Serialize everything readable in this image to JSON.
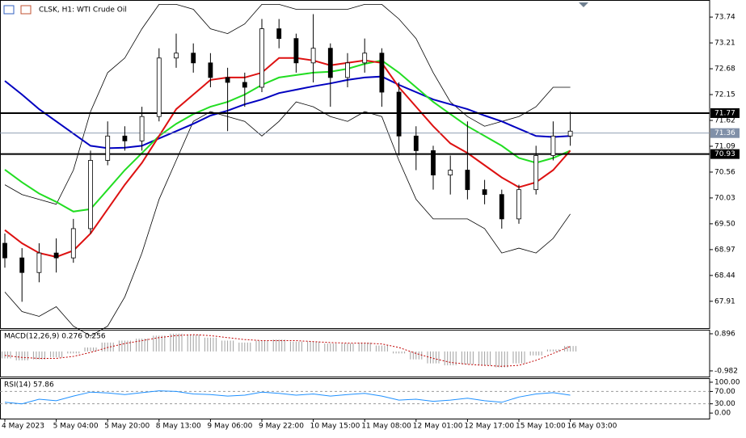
{
  "chart_data": [
    {
      "type": "candlestick",
      "title": "CLSK, H1:  WTI Crude Oil",
      "categories": [
        "4 May 2023",
        null,
        null,
        "5 May 04:00",
        null,
        null,
        "5 May 20:00",
        null,
        null,
        "8 May 13:00",
        null,
        null,
        "9 May 06:00",
        null,
        null,
        "9 May 22:00",
        null,
        null,
        "10 May 15:00",
        null,
        null,
        "11 May 08:00",
        null,
        null,
        "12 May 01:00",
        null,
        null,
        "12 May 17:00",
        null,
        null,
        "15 May 10:00",
        null,
        null,
        "16 May 03:00"
      ],
      "ohlc": [
        [
          69.1,
          69.3,
          68.6,
          68.8
        ],
        [
          68.8,
          69.0,
          67.9,
          68.5
        ],
        [
          68.5,
          69.1,
          68.3,
          68.9
        ],
        [
          68.9,
          69.2,
          68.5,
          68.8
        ],
        [
          68.8,
          69.6,
          68.7,
          69.4
        ],
        [
          69.4,
          71.0,
          69.3,
          70.8
        ],
        [
          70.8,
          71.6,
          70.7,
          71.3
        ],
        [
          71.3,
          71.5,
          71.0,
          71.2
        ],
        [
          71.2,
          71.9,
          71.0,
          71.7
        ],
        [
          71.7,
          73.1,
          71.6,
          72.9
        ],
        [
          72.9,
          73.4,
          72.7,
          73.0
        ],
        [
          73.0,
          73.2,
          72.6,
          72.8
        ],
        [
          72.8,
          73.0,
          72.3,
          72.5
        ],
        [
          72.5,
          72.7,
          71.4,
          72.4
        ],
        [
          72.4,
          72.6,
          71.9,
          72.3
        ],
        [
          72.3,
          73.7,
          72.2,
          73.5
        ],
        [
          73.5,
          73.7,
          73.1,
          73.3
        ],
        [
          73.3,
          73.4,
          72.6,
          72.8
        ],
        [
          72.8,
          73.8,
          72.4,
          73.1
        ],
        [
          73.1,
          73.2,
          71.9,
          72.5
        ],
        [
          72.5,
          73.0,
          72.3,
          72.8
        ],
        [
          72.8,
          73.3,
          72.6,
          73.0
        ],
        [
          73.0,
          73.1,
          71.9,
          72.2
        ],
        [
          72.2,
          72.4,
          70.9,
          71.3
        ],
        [
          71.3,
          71.5,
          70.6,
          71.0
        ],
        [
          71.0,
          71.1,
          70.2,
          70.5
        ],
        [
          70.5,
          70.9,
          70.1,
          70.6
        ],
        [
          70.6,
          71.6,
          70.0,
          70.2
        ],
        [
          70.2,
          70.4,
          69.9,
          70.1
        ],
        [
          70.1,
          70.2,
          69.4,
          69.6
        ],
        [
          69.6,
          70.3,
          69.5,
          70.2
        ],
        [
          70.2,
          71.1,
          70.1,
          70.9
        ],
        [
          70.9,
          71.6,
          70.8,
          71.3
        ],
        [
          71.3,
          71.8,
          71.1,
          71.4
        ]
      ],
      "overlays": [
        {
          "color": "#000000",
          "values": [
            70.3,
            70.1,
            70.0,
            69.9,
            70.6,
            71.8,
            72.6,
            72.9,
            73.5,
            74.0,
            74.0,
            73.9,
            73.5,
            73.4,
            73.6,
            74.0,
            74.0,
            73.9,
            73.9,
            73.9,
            73.9,
            74.0,
            74.0,
            73.7,
            73.3,
            72.6,
            72.0,
            71.7,
            71.5,
            71.6,
            71.7,
            71.9,
            72.3,
            72.3
          ]
        },
        {
          "color": "#000000",
          "values": [
            68.1,
            67.7,
            67.6,
            67.8,
            67.4,
            67.2,
            67.4,
            68.0,
            68.9,
            70.0,
            70.8,
            71.6,
            71.8,
            71.7,
            71.6,
            71.3,
            71.6,
            72.0,
            71.9,
            71.7,
            71.6,
            71.8,
            71.7,
            70.8,
            70.0,
            69.6,
            69.6,
            69.6,
            69.4,
            68.9,
            69.0,
            68.9,
            69.2,
            69.7
          ]
        },
        {
          "color": "#0000c0",
          "values": [
            72.43,
            72.15,
            71.85,
            71.6,
            71.35,
            71.1,
            71.05,
            71.06,
            71.1,
            71.25,
            71.4,
            71.55,
            71.72,
            71.82,
            71.95,
            72.05,
            72.18,
            72.25,
            72.32,
            72.38,
            72.45,
            72.5,
            72.52,
            72.35,
            72.2,
            72.05,
            71.95,
            71.85,
            71.72,
            71.6,
            71.45,
            71.3,
            71.28,
            71.3
          ]
        },
        {
          "color": "#22dd22",
          "values": [
            70.61,
            70.35,
            70.12,
            69.95,
            69.75,
            69.8,
            70.2,
            70.6,
            70.95,
            71.3,
            71.55,
            71.75,
            71.9,
            72.0,
            72.15,
            72.35,
            72.5,
            72.55,
            72.6,
            72.62,
            72.68,
            72.78,
            72.85,
            72.6,
            72.3,
            72.0,
            71.75,
            71.5,
            71.3,
            71.1,
            70.85,
            70.75,
            70.85,
            71.0
          ]
        },
        {
          "color": "#dd1111",
          "values": [
            69.37,
            69.1,
            68.9,
            68.82,
            68.95,
            69.3,
            69.8,
            70.3,
            70.75,
            71.3,
            71.85,
            72.15,
            72.45,
            72.5,
            72.5,
            72.6,
            72.9,
            72.9,
            72.85,
            72.75,
            72.8,
            72.85,
            72.8,
            72.3,
            71.9,
            71.5,
            71.15,
            70.95,
            70.7,
            70.45,
            70.25,
            70.35,
            70.6,
            71.0
          ]
        }
      ],
      "levels": [
        71.77,
        70.93
      ],
      "current": 71.36,
      "ylim": [
        67.36,
        74.09
      ],
      "yticks": [
        73.74,
        73.21,
        72.68,
        72.15,
        71.62,
        71.09,
        70.56,
        70.03,
        {
          "value": 69.5,
          "label": "69.50"
        },
        68.97,
        68.44,
        67.91
      ]
    },
    {
      "type": "macd",
      "title": "MACD(12,26,9) 0.276 0.256",
      "color": "#a0a0a0",
      "signal_color": "#c00000",
      "values": [
        -0.35,
        -0.45,
        -0.4,
        -0.3,
        -0.1,
        0.2,
        0.45,
        0.55,
        0.65,
        0.8,
        0.9,
        0.85,
        0.7,
        0.55,
        0.45,
        0.55,
        0.6,
        0.5,
        0.5,
        0.4,
        0.4,
        0.45,
        0.3,
        -0.1,
        -0.4,
        -0.6,
        -0.7,
        -0.65,
        -0.7,
        -0.8,
        -0.6,
        -0.2,
        0.1,
        0.276
      ],
      "signal": [
        -0.2,
        -0.3,
        -0.35,
        -0.35,
        -0.25,
        -0.05,
        0.2,
        0.4,
        0.55,
        0.7,
        0.8,
        0.85,
        0.8,
        0.7,
        0.6,
        0.55,
        0.55,
        0.55,
        0.5,
        0.45,
        0.42,
        0.42,
        0.38,
        0.2,
        -0.1,
        -0.35,
        -0.55,
        -0.65,
        -0.7,
        -0.75,
        -0.7,
        -0.45,
        -0.1,
        0.256
      ],
      "ylim": [
        -1.27,
        1.1
      ],
      "yticks": [
        0.896,
        -0.982
      ]
    },
    {
      "type": "line",
      "title": "RSI(14) 57.86",
      "color": "#1e90ff",
      "values": [
        35,
        30,
        45,
        40,
        55,
        68,
        65,
        60,
        66,
        72,
        70,
        62,
        60,
        55,
        58,
        68,
        64,
        58,
        62,
        55,
        60,
        64,
        55,
        42,
        45,
        38,
        42,
        48,
        40,
        35,
        52,
        62,
        66,
        57.86
      ],
      "ylim": [
        -18,
        113
      ],
      "yticks": [
        {
          "value": 100,
          "label": "100.00"
        },
        {
          "value": 70,
          "label": "70.00"
        },
        {
          "value": 30,
          "label": "30.00"
        },
        {
          "value": 0,
          "label": "0.00"
        }
      ],
      "dashed_ticks": [
        70,
        30
      ]
    }
  ]
}
